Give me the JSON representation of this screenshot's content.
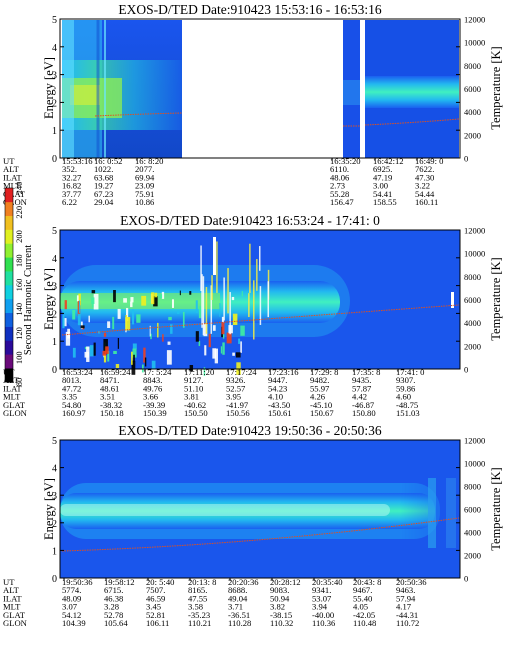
{
  "chart_data": [
    {
      "type": "heatmap",
      "title": "EXOS-D/TED   Date:910423   15:53:16 - 16:53:16",
      "ylabel": "Energy [eV]",
      "y2label": "Temperature [K]",
      "ylim": [
        0,
        5
      ],
      "y2lim": [
        0,
        12000
      ],
      "yticks": [
        "0",
        "1",
        "2",
        "3",
        "4",
        "5"
      ],
      "y2ticks": [
        "0",
        "2000",
        "4000",
        "6000",
        "8000",
        "10000",
        "12000"
      ],
      "data_gaps": [
        [
          "16:20:00",
          "16:33:00"
        ]
      ],
      "band_center_eV": 2.5,
      "temperature_trace_K": {
        "start": 3200,
        "end": 3500
      },
      "ephemeris": {
        "labels": [
          "UT",
          "ALT",
          "ILAT",
          "MLT",
          "GLAT",
          "GLON"
        ],
        "columns": [
          [
            "15:53:16",
            "352.",
            "32.27",
            "16.82",
            "37.77",
            "6.22"
          ],
          [
            "16: 0:52",
            "1022.",
            "63.68",
            "19.27",
            "67.23",
            "29.04"
          ],
          [
            "16: 8:20",
            "2077.",
            "69.94",
            "23.09",
            "75.91",
            "10.86"
          ],
          [
            "16:35:20",
            "6110.",
            "48.06",
            "2.73",
            "55.28",
            "156.47"
          ],
          [
            "16:42:12",
            "6925.",
            "47.19",
            "3.00",
            "54.41",
            "158.55"
          ],
          [
            "16:49: 0",
            "7622.",
            "47.30",
            "3.22",
            "54.44",
            "160.11"
          ]
        ]
      }
    },
    {
      "type": "heatmap",
      "title": "EXOS-D/TED   Date:910423   16:53:24 - 17:41: 0",
      "ylabel": "Energy [eV]",
      "y2label": "Temperature [K]",
      "ylim": [
        0,
        5
      ],
      "y2lim": [
        0,
        12000
      ],
      "yticks": [
        "0",
        "1",
        "2",
        "3",
        "4",
        "5"
      ],
      "y2ticks": [
        "0",
        "2000",
        "4000",
        "6000",
        "8000",
        "10000",
        "12000"
      ],
      "band_center_eV": 2.4,
      "temperature_trace_K": {
        "start": 3300,
        "end": 6000
      },
      "ephemeris": {
        "labels": [
          "UT",
          "ALT",
          "ILAT",
          "MLT",
          "GLAT",
          "GLON"
        ],
        "columns": [
          [
            "16:53:24",
            "8013.",
            "47.72",
            "3.35",
            "54.80",
            "160.97"
          ],
          [
            "16:59:24",
            "8471.",
            "48.61",
            "3.51",
            "-38.32",
            "150.18"
          ],
          [
            "17: 5:24",
            "8843.",
            "49.76",
            "3.66",
            "-39.39",
            "150.39"
          ],
          [
            "17:11:20",
            "9127.",
            "51.10",
            "3.81",
            "-40.62",
            "150.50"
          ],
          [
            "17:17:24",
            "9326.",
            "52.57",
            "3.95",
            "-41.97",
            "150.56"
          ],
          [
            "17:23:16",
            "9447.",
            "54.23",
            "4.10",
            "-43.50",
            "150.61"
          ],
          [
            "17:29: 8",
            "9482.",
            "55.97",
            "4.26",
            "-45.10",
            "150.67"
          ],
          [
            "17:35: 8",
            "9435.",
            "57.87",
            "4.42",
            "-46.87",
            "150.80"
          ],
          [
            "17:41: 0",
            "9307.",
            "59.86",
            "4.60",
            "-48.75",
            "151.03"
          ]
        ]
      }
    },
    {
      "type": "heatmap",
      "title": "EXOS-D/TED   Date:910423   19:50:36 - 20:50:36",
      "ylabel": "Energy [eV]",
      "y2label": "Temperature [K]",
      "ylim": [
        0,
        5
      ],
      "y2lim": [
        0,
        12000
      ],
      "yticks": [
        "0",
        "1",
        "2",
        "3",
        "4",
        "5"
      ],
      "y2ticks": [
        "0",
        "2000",
        "4000",
        "6000",
        "8000",
        "10000",
        "12000"
      ],
      "band_center_eV": 2.5,
      "temperature_trace_K": {
        "start": 2000,
        "end": 6000
      },
      "ephemeris": {
        "labels": [
          "UT",
          "ALT",
          "ILAT",
          "MLT",
          "GLAT",
          "GLON"
        ],
        "columns": [
          [
            "19:50:36",
            "5774.",
            "48.09",
            "3.07",
            "54.12",
            "104.39"
          ],
          [
            "19:58:12",
            "6715.",
            "46.38",
            "3.28",
            "52.78",
            "105.64"
          ],
          [
            "20: 5:40",
            "7507.",
            "46.59",
            "3.45",
            "52.81",
            "106.11"
          ],
          [
            "20:13: 8",
            "8165.",
            "47.55",
            "3.58",
            "-35.23",
            "110.21"
          ],
          [
            "20:20:36",
            "8688.",
            "49.04",
            "3.71",
            "-36.51",
            "110.28"
          ],
          [
            "20:28:12",
            "9083.",
            "50.94",
            "3.82",
            "-38.15",
            "110.32"
          ],
          [
            "20:35:40",
            "9341.",
            "53.07",
            "3.94",
            "-40.00",
            "110.36"
          ],
          [
            "20:43: 8",
            "9467.",
            "55.40",
            "4.05",
            "-42.05",
            "110.48"
          ],
          [
            "20:50:36",
            "9463.",
            "57.94",
            "4.17",
            "-44.31",
            "110.72"
          ]
        ]
      }
    }
  ],
  "colorbar": {
    "label": "Second Harmonic Current",
    "ticks": [
      "80",
      "100",
      "120",
      "140",
      "160",
      "180",
      "200",
      "220",
      "240"
    ],
    "colors": [
      "#000000",
      "#6a0a7a",
      "#2a0a9a",
      "#1030c0",
      "#1060e0",
      "#10a0f0",
      "#10d0e0",
      "#20e0a0",
      "#30e050",
      "#90f030",
      "#e0f020",
      "#f0c020",
      "#f08020",
      "#e02020"
    ]
  }
}
